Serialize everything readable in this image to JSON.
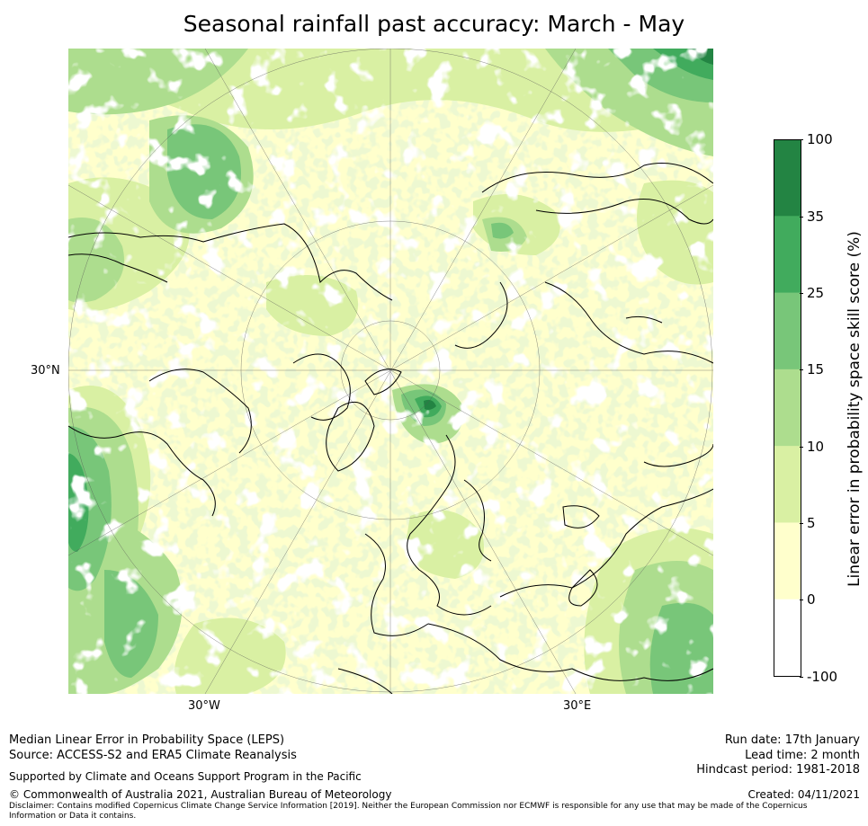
{
  "title": "Seasonal rainfall past accuracy: March - May",
  "map": {
    "projection": "north polar stereographic",
    "lat_labels": [
      "30°N"
    ],
    "lon_labels": [
      "30°W",
      "30°E"
    ],
    "palette": {
      "lt0": "#ffffff",
      "0to5": "#ffffcc",
      "5to10": "#d9f0a3",
      "10to15": "#addd8e",
      "15to25": "#78c679",
      "25to35": "#41ab5d",
      "35to100": "#238443",
      "coast": "#000000"
    }
  },
  "colorbar": {
    "label": "Linear error in probability space skill score (%)",
    "ticks": [
      "100",
      "35",
      "25",
      "15",
      "10",
      "5",
      "0",
      "-100"
    ],
    "bins": [
      {
        "range": "35 to 100",
        "color": "#238443"
      },
      {
        "range": "25 to 35",
        "color": "#41ab5d"
      },
      {
        "range": "15 to 25",
        "color": "#78c679"
      },
      {
        "range": "10 to 15",
        "color": "#addd8e"
      },
      {
        "range": "5 to 10",
        "color": "#d9f0a3"
      },
      {
        "range": "0 to 5",
        "color": "#ffffcc"
      },
      {
        "range": "-100 to 0",
        "color": "#ffffff"
      }
    ]
  },
  "footer": {
    "metric": "Median Linear Error in Probability Space (LEPS)",
    "source": "Source: ACCESS-S2 and ERA5 Climate Reanalysis",
    "support": "Supported by Climate and Oceans Support Program in the Pacific",
    "copyright": "© Commonwealth of Australia 2021, Australian Bureau of Meteorology",
    "disclaimer": "Disclaimer: Contains modified Copernicus Climate Change Service Information [2019]. Neither the European Commission nor ECMWF is responsible for any use that may be made of the Copernicus Information or Data it contains.",
    "run_date": "Run date: 17th January",
    "lead_time": "Lead time: 2 month",
    "hindcast": "Hindcast period: 1981-2018",
    "created": "Created: 04/11/2021"
  }
}
